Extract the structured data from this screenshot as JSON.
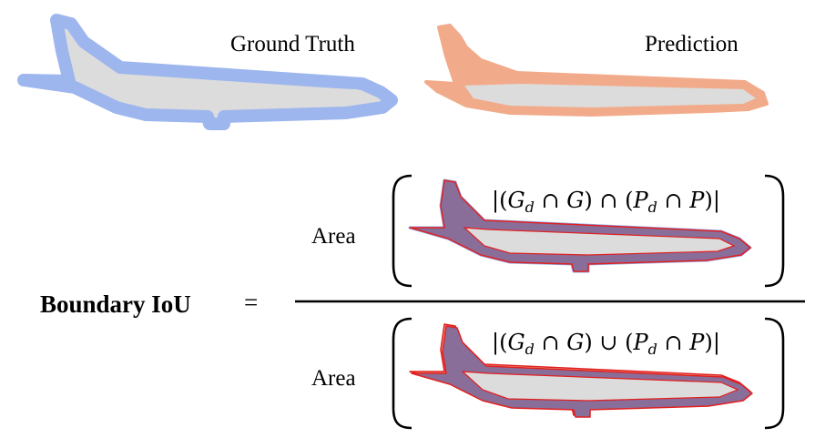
{
  "panels": {
    "ground_truth_label": "Ground Truth",
    "prediction_label": "Prediction"
  },
  "formula": {
    "lhs_label": "Boundary IoU",
    "equals": "=",
    "numerator": {
      "area_label": "Area",
      "expression": "|(Gd ∩ G) ∩ (Pd ∩ P)|",
      "operator": "intersection"
    },
    "denominator": {
      "area_label": "Area",
      "expression": "|(Gd ∩ G) ∪ (Pd ∩ P)|",
      "operator": "union"
    }
  },
  "colors": {
    "ground_truth": "#7e9fe6",
    "prediction": "#f2ab8a",
    "interior": "#dcdcdc",
    "overlap_band": "#8a6e9a",
    "outline": "#e02020"
  }
}
